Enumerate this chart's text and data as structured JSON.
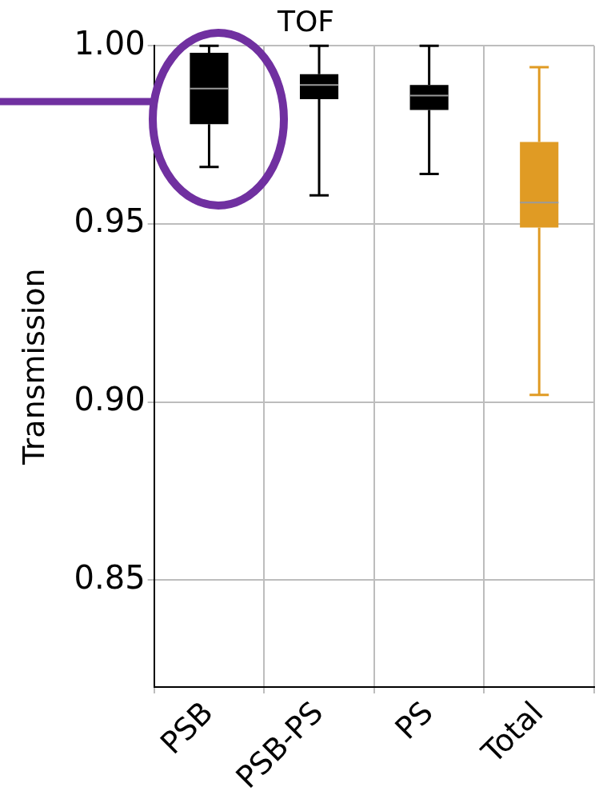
{
  "chart_data": {
    "type": "box",
    "title": "TOF",
    "ylabel": "Transmission",
    "categories": [
      "PSB",
      "PSB-PS",
      "PS",
      "Total"
    ],
    "colors": [
      "#000000",
      "#000000",
      "#000000",
      "#e09b24"
    ],
    "boxes": [
      {
        "low": 0.966,
        "q1": 0.978,
        "median": 0.988,
        "q3": 0.998,
        "high": 1.0
      },
      {
        "low": 0.958,
        "q1": 0.985,
        "median": 0.989,
        "q3": 0.992,
        "high": 1.0
      },
      {
        "low": 0.964,
        "q1": 0.982,
        "median": 0.986,
        "q3": 0.989,
        "high": 1.0
      },
      {
        "low": 0.902,
        "q1": 0.949,
        "median": 0.956,
        "q3": 0.973,
        "high": 0.994
      }
    ],
    "ylim": [
      0.82,
      1.0
    ],
    "yticks": [
      {
        "value": 0.85,
        "label": "0.85"
      },
      {
        "value": 0.9,
        "label": "0.90"
      },
      {
        "value": 0.95,
        "label": "0.95"
      },
      {
        "value": 1.0,
        "label": "1.00"
      }
    ],
    "grid": true
  }
}
